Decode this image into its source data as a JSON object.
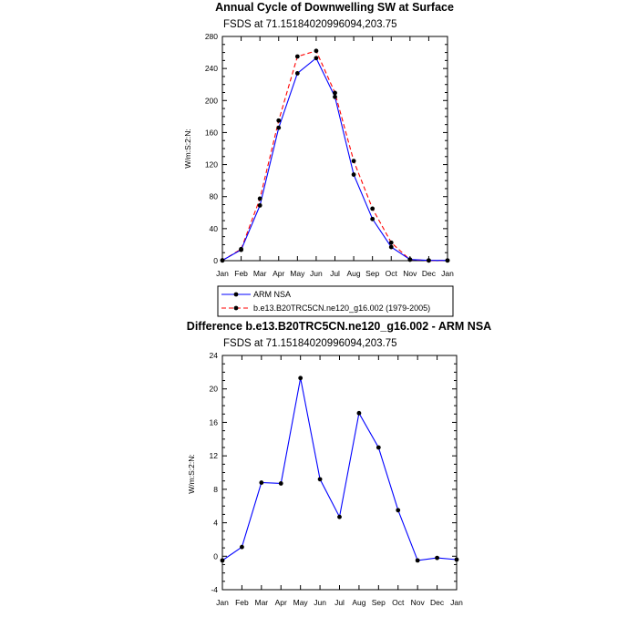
{
  "chart_data": [
    {
      "type": "line",
      "title": "Annual Cycle of Downwelling SW at Surface",
      "subtitle": "FSDS at 71.15184020996094,203.75",
      "xlabel": "",
      "ylabel": "W/m:S:2:N:",
      "x": [
        "Jan",
        "Feb",
        "Mar",
        "Apr",
        "May",
        "Jun",
        "Jul",
        "Aug",
        "Sep",
        "Oct",
        "Nov",
        "Dec",
        "Jan"
      ],
      "ylim": [
        0,
        280
      ],
      "yticks": [
        "0",
        "40",
        "80",
        "120",
        "160",
        "200",
        "240",
        "280"
      ],
      "grid": false,
      "legend": "below",
      "series": [
        {
          "name": "ARM NSA",
          "color": "#0000ff",
          "dash": "solid",
          "values": [
            0.5,
            13.5,
            69,
            166,
            234,
            253,
            204.5,
            107.5,
            52,
            17,
            1.5,
            0.3,
            0.3
          ]
        },
        {
          "name": "b.e13.B20TRC5CN.ne120_g16.002 (1979-2005)",
          "color": "#ff0000",
          "dash": "dashed",
          "values": [
            0.2,
            14.5,
            77.5,
            175,
            255,
            262,
            209.5,
            124.5,
            65,
            22.5,
            1.2,
            0.2,
            0.2
          ]
        }
      ]
    },
    {
      "type": "line",
      "title": "Difference b.e13.B20TRC5CN.ne120_g16.002 - ARM NSA",
      "subtitle": "FSDS at 71.15184020996094,203.75",
      "xlabel": "",
      "ylabel": "W/m:S:2:N:",
      "x": [
        "Jan",
        "Feb",
        "Mar",
        "Apr",
        "May",
        "Jun",
        "Jul",
        "Aug",
        "Sep",
        "Oct",
        "Nov",
        "Dec",
        "Jan"
      ],
      "ylim": [
        -4,
        24
      ],
      "yticks": [
        "-4",
        "0",
        "4",
        "8",
        "12",
        "16",
        "20",
        "24"
      ],
      "grid": false,
      "series": [
        {
          "color": "#0000ff",
          "dash": "solid",
          "values": [
            -0.5,
            1.1,
            8.8,
            8.7,
            21.3,
            9.2,
            4.7,
            17.1,
            13,
            5.5,
            -0.5,
            -0.2,
            -0.4
          ]
        }
      ]
    }
  ]
}
